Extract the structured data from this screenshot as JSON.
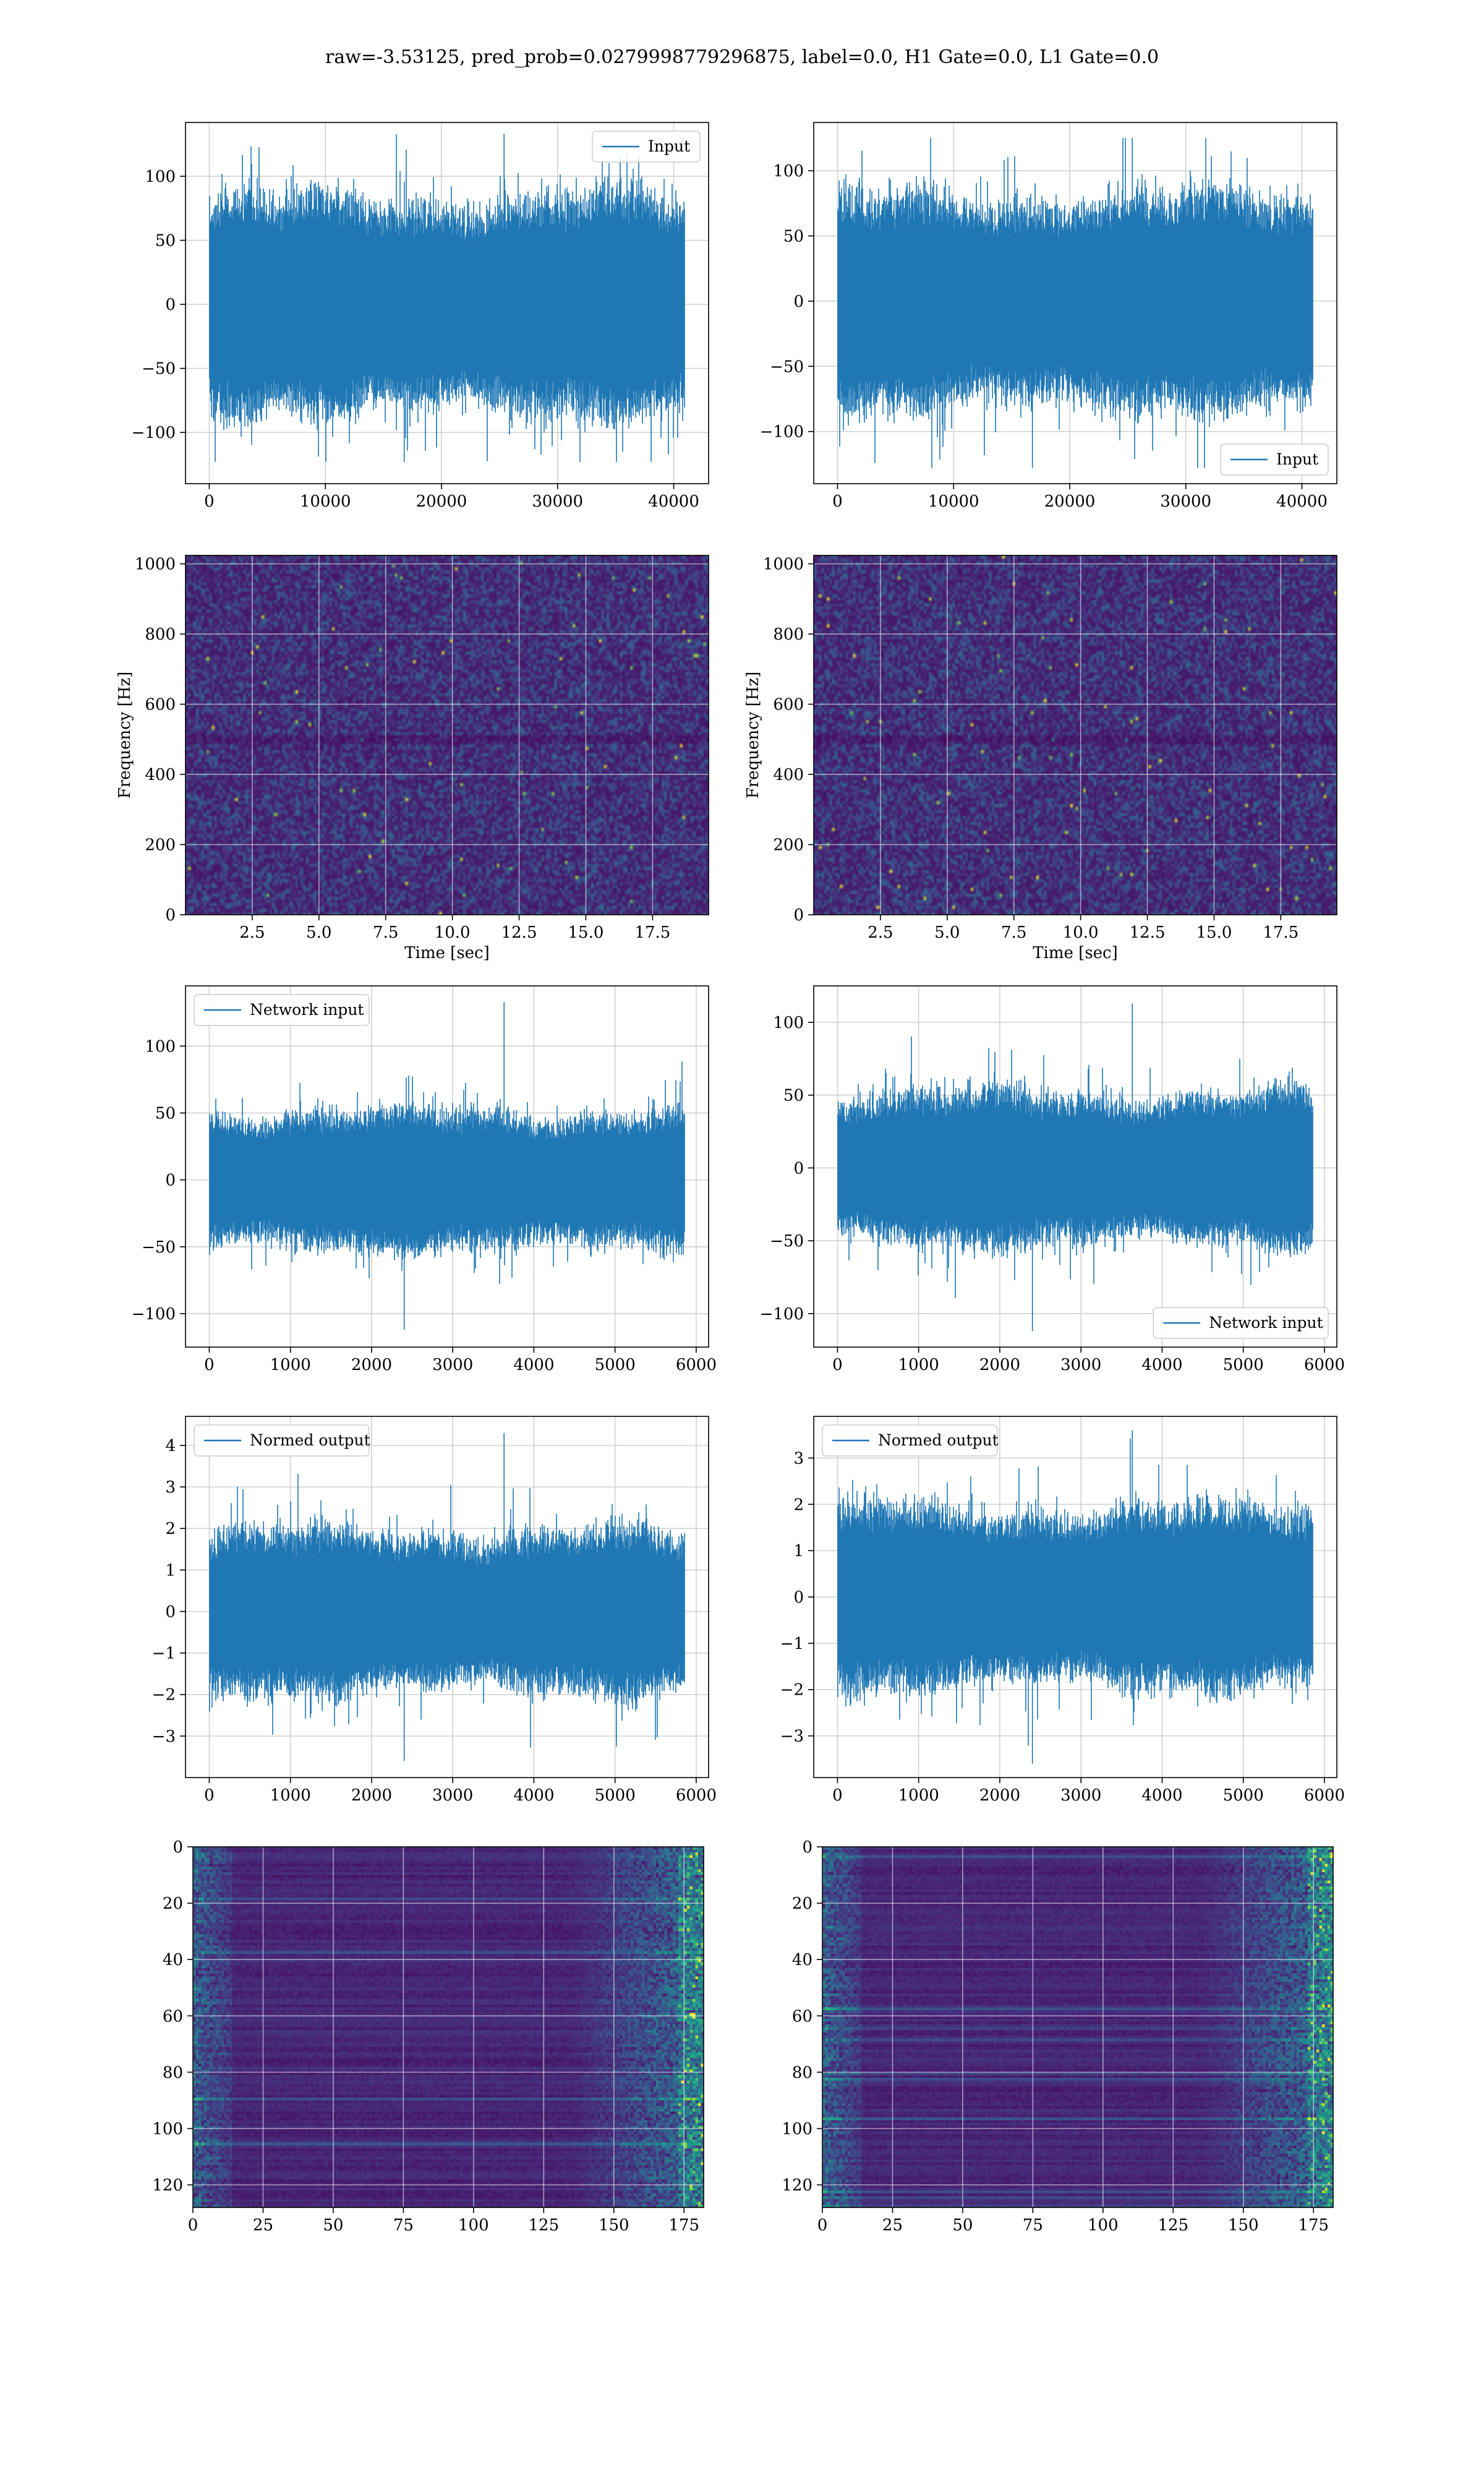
{
  "figure": {
    "title": "raw=-3.53125, pred_prob=0.0279998779296875, label=0.0, H1 Gate=0.0, L1 Gate=0.0",
    "signal_color": "#1f77b4",
    "colormap": "viridis"
  },
  "chart_data": [
    {
      "id": "h1-input",
      "type": "line",
      "legend": "Input",
      "legend_loc": "upper right",
      "series": [
        {
          "name": "Input",
          "n_points": 40960,
          "amplitude_std": 28,
          "peak_max": 133,
          "peak_min": -123
        }
      ],
      "xlim": [
        -2048,
        43008
      ],
      "ylim": [
        -140,
        142
      ],
      "grid": true,
      "xticks": [
        0,
        10000,
        20000,
        30000,
        40000
      ],
      "yticks": [
        -100,
        -50,
        0,
        50,
        100
      ],
      "xlabel": "",
      "ylabel": ""
    },
    {
      "id": "l1-input",
      "type": "line",
      "legend": "Input",
      "legend_loc": "lower right",
      "series": [
        {
          "name": "Input",
          "n_points": 40960,
          "amplitude_std": 27,
          "peak_max": 125,
          "peak_min": -128
        }
      ],
      "xlim": [
        -2048,
        43008
      ],
      "ylim": [
        -140,
        137
      ],
      "grid": true,
      "xticks": [
        0,
        10000,
        20000,
        30000,
        40000
      ],
      "yticks": [
        -100,
        -50,
        0,
        50,
        100
      ],
      "xlabel": "",
      "ylabel": ""
    },
    {
      "id": "h1-spectrogram",
      "type": "heatmap",
      "xlim": [
        0,
        19.6
      ],
      "ylim": [
        0,
        1024
      ],
      "grid": true,
      "xticks": [
        2.5,
        5.0,
        7.5,
        10.0,
        12.5,
        15.0,
        17.5
      ],
      "yticks": [
        0,
        200,
        400,
        600,
        800,
        1000
      ],
      "xlabel": "Time [sec]",
      "ylabel": "Frequency [Hz]"
    },
    {
      "id": "l1-spectrogram",
      "type": "heatmap",
      "xlim": [
        0,
        19.6
      ],
      "ylim": [
        0,
        1024
      ],
      "grid": true,
      "xticks": [
        2.5,
        5.0,
        7.5,
        10.0,
        12.5,
        15.0,
        17.5
      ],
      "yticks": [
        0,
        200,
        400,
        600,
        800,
        1000
      ],
      "xlabel": "Time [sec]",
      "ylabel": "Frequency [Hz]"
    },
    {
      "id": "h1-network-input",
      "type": "line",
      "legend": "Network input",
      "legend_loc": "upper left",
      "series": [
        {
          "name": "Network input",
          "n_points": 5860,
          "amplitude_std": 24,
          "peak_max": 133,
          "peak_min": -112
        }
      ],
      "xlim": [
        -293,
        6153
      ],
      "ylim": [
        -125,
        145
      ],
      "grid": true,
      "xticks": [
        0,
        1000,
        2000,
        3000,
        4000,
        5000,
        6000
      ],
      "yticks": [
        -100,
        -50,
        0,
        50,
        100
      ],
      "xlabel": "",
      "ylabel": ""
    },
    {
      "id": "l1-network-input",
      "type": "line",
      "legend": "Network input",
      "legend_loc": "lower right",
      "series": [
        {
          "name": "Network input",
          "n_points": 5860,
          "amplitude_std": 24,
          "peak_max": 113,
          "peak_min": -112
        }
      ],
      "xlim": [
        -293,
        6153
      ],
      "ylim": [
        -123,
        125
      ],
      "grid": true,
      "xticks": [
        0,
        1000,
        2000,
        3000,
        4000,
        5000,
        6000
      ],
      "yticks": [
        -100,
        -50,
        0,
        50,
        100
      ],
      "xlabel": "",
      "ylabel": ""
    },
    {
      "id": "h1-normed-output",
      "type": "line",
      "legend": "Normed output",
      "legend_loc": "upper left",
      "series": [
        {
          "name": "Normed output",
          "n_points": 5860,
          "amplitude_std": 0.9,
          "peak_max": 4.3,
          "peak_min": -3.6
        }
      ],
      "xlim": [
        -293,
        6153
      ],
      "ylim": [
        -4.0,
        4.7
      ],
      "grid": true,
      "xticks": [
        0,
        1000,
        2000,
        3000,
        4000,
        5000,
        6000
      ],
      "yticks": [
        -3,
        -2,
        -1,
        0,
        1,
        2,
        3,
        4
      ],
      "xlabel": "",
      "ylabel": ""
    },
    {
      "id": "l1-normed-output",
      "type": "line",
      "legend": "Normed output",
      "legend_loc": "upper left",
      "series": [
        {
          "name": "Normed output",
          "n_points": 5860,
          "amplitude_std": 0.9,
          "peak_max": 3.6,
          "peak_min": -3.6
        }
      ],
      "xlim": [
        -293,
        6153
      ],
      "ylim": [
        -3.9,
        3.9
      ],
      "grid": true,
      "xticks": [
        0,
        1000,
        2000,
        3000,
        4000,
        5000,
        6000
      ],
      "yticks": [
        -3,
        -2,
        -1,
        0,
        1,
        2,
        3
      ],
      "xlabel": "",
      "ylabel": ""
    },
    {
      "id": "h1-feature-map",
      "type": "heatmap",
      "n_rows": 128,
      "n_cols": 182,
      "xlim": [
        0,
        182
      ],
      "ylim": [
        128,
        0
      ],
      "grid": true,
      "xticks": [
        0,
        25,
        50,
        75,
        100,
        125,
        150,
        175
      ],
      "yticks": [
        0,
        20,
        40,
        60,
        80,
        100,
        120
      ],
      "xlabel": "",
      "ylabel": ""
    },
    {
      "id": "l1-feature-map",
      "type": "heatmap",
      "n_rows": 128,
      "n_cols": 182,
      "xlim": [
        0,
        182
      ],
      "ylim": [
        128,
        0
      ],
      "grid": true,
      "xticks": [
        0,
        25,
        50,
        75,
        100,
        125,
        150,
        175
      ],
      "yticks": [
        0,
        20,
        40,
        60,
        80,
        100,
        120
      ],
      "xlabel": "",
      "ylabel": ""
    }
  ]
}
